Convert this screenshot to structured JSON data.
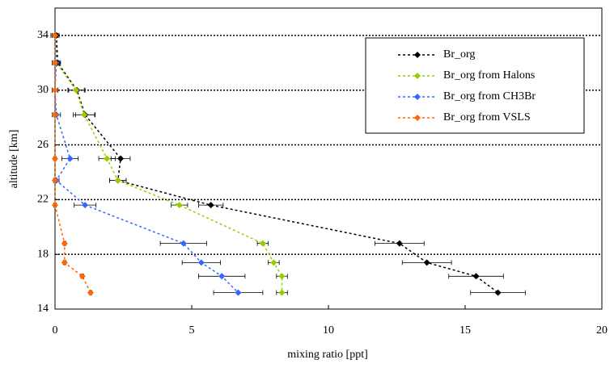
{
  "chart_data": {
    "type": "scatter-line",
    "xlabel": "mixing ratio [ppt]",
    "ylabel": "altitude [km]",
    "xlim": [
      0,
      20
    ],
    "xticks": [
      0,
      5,
      10,
      15,
      20
    ],
    "ylim": [
      14,
      36
    ],
    "yticks": [
      14,
      18,
      22,
      26,
      30,
      34
    ],
    "grid": true,
    "legend": "upper right",
    "y": [
      34,
      32,
      30,
      28.2,
      25,
      23.4,
      21.6,
      18.8,
      17.4,
      16.4,
      15.2
    ],
    "series": [
      {
        "name": "Br_org",
        "color": "#000000",
        "x": [
          0.05,
          0.1,
          0.8,
          1.1,
          2.4,
          2.3,
          5.7,
          12.6,
          13.6,
          15.4,
          16.2
        ],
        "errors": [
          0.1,
          0.1,
          0.3,
          0.35,
          0.35,
          0.3,
          0.45,
          0.9,
          0.9,
          1.0,
          1.0
        ]
      },
      {
        "name": "Br_org from Halons",
        "color": "#99cc00",
        "x": [
          0.0,
          0.05,
          0.77,
          1.07,
          1.9,
          2.3,
          4.55,
          7.6,
          8.0,
          8.3,
          8.3
        ],
        "errors": [
          0.1,
          0.1,
          0.3,
          0.4,
          0.3,
          0.3,
          0.3,
          0.2,
          0.2,
          0.2,
          0.2
        ]
      },
      {
        "name": "Br_org from CH3Br",
        "color": "#3366ff",
        "x": [
          0.0,
          0.05,
          0.0,
          0.05,
          0.55,
          0.05,
          1.1,
          4.7,
          5.35,
          6.1,
          6.7
        ],
        "errors": [
          0.1,
          0.15,
          0.1,
          0.15,
          0.3,
          0.1,
          0.4,
          0.85,
          0.7,
          0.85,
          0.9
        ]
      },
      {
        "name": "Br_org from VSLS",
        "color": "#ff6600",
        "x": [
          0.0,
          0.0,
          0.0,
          0.0,
          0.0,
          0.0,
          0.0,
          0.35,
          0.35,
          1.0,
          1.3
        ],
        "errors": [
          0.15,
          0.1,
          0.1,
          0.05,
          0.05,
          0.05,
          0.05,
          0.05,
          0.05,
          0.05,
          0.05
        ]
      }
    ]
  }
}
